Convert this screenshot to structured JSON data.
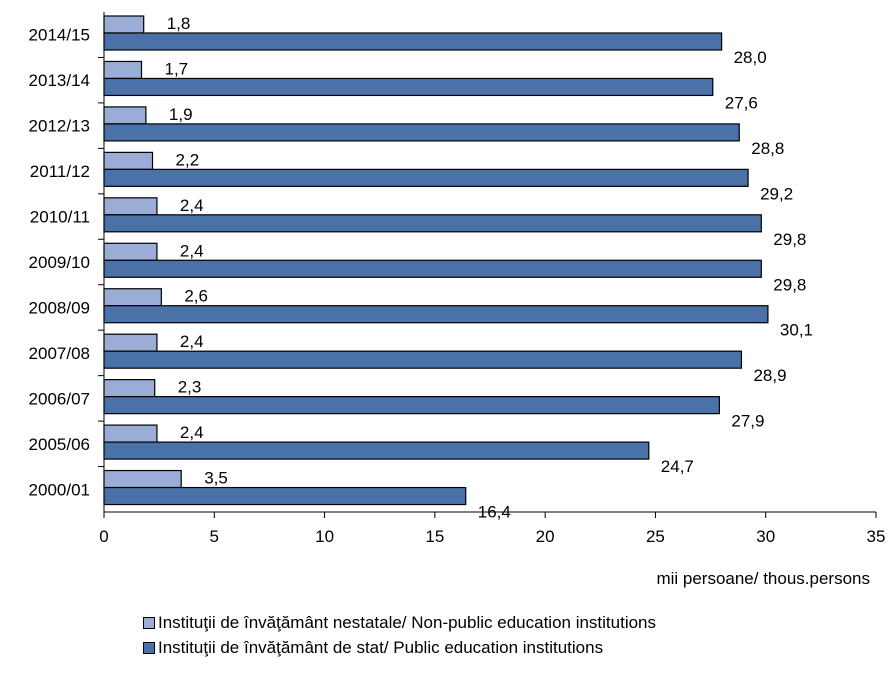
{
  "chart_data": {
    "type": "bar",
    "orientation": "horizontal",
    "categories": [
      "2014/15",
      "2013/14",
      "2012/13",
      "2011/12",
      "2010/11",
      "2009/10",
      "2008/09",
      "2007/08",
      "2006/07",
      "2005/06",
      "2000/01"
    ],
    "series": [
      {
        "name": "Instituţii de învăţământ nestatale/ Non-public education institutions",
        "color": "#9aadd6",
        "values": [
          1.8,
          1.7,
          1.9,
          2.2,
          2.4,
          2.4,
          2.6,
          2.4,
          2.3,
          2.4,
          3.5
        ],
        "labels": [
          "1,8",
          "1,7",
          "1,9",
          "2,2",
          "2,4",
          "2,4",
          "2,6",
          "2,4",
          "2,3",
          "2,4",
          "3,5"
        ]
      },
      {
        "name": "Instituţii de învăţământ de stat/ Public education institutions",
        "color": "#4a72a8",
        "values": [
          28.0,
          27.6,
          28.8,
          29.2,
          29.8,
          29.8,
          30.1,
          28.9,
          27.9,
          24.7,
          16.4
        ],
        "labels": [
          "28,0",
          "27,6",
          "28,8",
          "29,2",
          "29,8",
          "29,8",
          "30,1",
          "28,9",
          "27,9",
          "24,7",
          "16,4"
        ]
      }
    ],
    "xlim": [
      0,
      35
    ],
    "xticks": [
      0,
      5,
      10,
      15,
      20,
      25,
      30,
      35
    ],
    "xlabel": "mii persoane/ thous.persons",
    "ylabel": "",
    "title": "",
    "grid": false,
    "legend_position": "bottom"
  }
}
